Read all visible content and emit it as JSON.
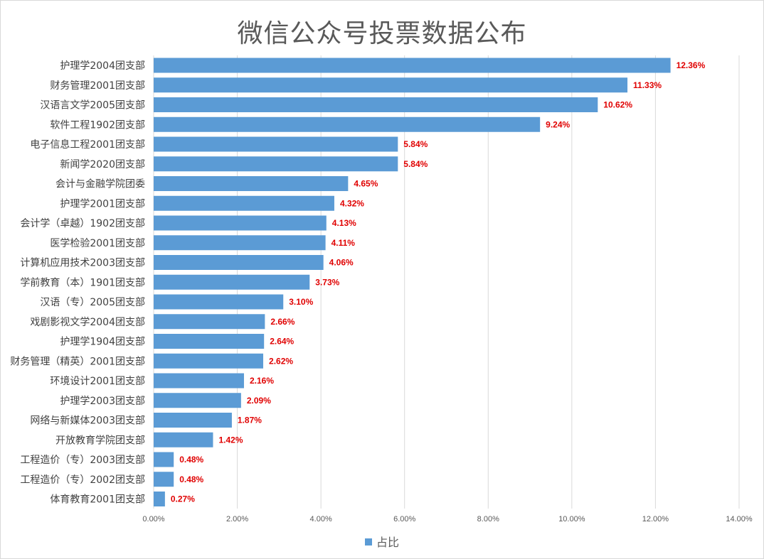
{
  "chart_data": {
    "type": "bar",
    "orientation": "horizontal",
    "title": "微信公众号投票数据公布",
    "categories": [
      "护理学2004团支部",
      "财务管理2001团支部",
      "汉语言文学2005团支部",
      "软件工程1902团支部",
      "电子信息工程2001团支部",
      "新闻学2020团支部",
      "会计与金融学院团委",
      "护理学2001团支部",
      "会计学（卓越）1902团支部",
      "医学检验2001团支部",
      "计算机应用技术2003团支部",
      "学前教育（本）1901团支部",
      "汉语（专）2005团支部",
      "戏剧影视文学2004团支部",
      "护理学1904团支部",
      "财务管理（精英）2001团支部",
      "环境设计2001团支部",
      "护理学2003团支部",
      "网络与新媒体2003团支部",
      "开放教育学院团支部",
      "工程造价（专）2003团支部",
      "工程造价（专）2002团支部",
      "体育教育2001团支部"
    ],
    "series": [
      {
        "name": "占比",
        "values": [
          12.36,
          11.33,
          10.62,
          9.24,
          5.84,
          5.84,
          4.65,
          4.32,
          4.13,
          4.11,
          4.06,
          3.73,
          3.1,
          2.66,
          2.64,
          2.62,
          2.16,
          2.09,
          1.87,
          1.42,
          0.48,
          0.48,
          0.27
        ]
      }
    ],
    "data_labels": [
      "12.36%",
      "11.33%",
      "10.62%",
      "9.24%",
      "5.84%",
      "5.84%",
      "4.65%",
      "4.32%",
      "4.13%",
      "4.11%",
      "4.06%",
      "3.73%",
      "3.10%",
      "2.66%",
      "2.64%",
      "2.62%",
      "2.16%",
      "2.09%",
      "1.87%",
      "1.42%",
      "0.48%",
      "0.48%",
      "0.27%"
    ],
    "xlim": [
      0,
      14
    ],
    "x_ticks": [
      0,
      2,
      4,
      6,
      8,
      10,
      12,
      14
    ],
    "x_tick_labels": [
      "0.00%",
      "2.00%",
      "4.00%",
      "6.00%",
      "8.00%",
      "10.00%",
      "12.00%",
      "14.00%"
    ],
    "grid": true,
    "legend_position": "bottom",
    "colors": {
      "bar": "#5b9bd5",
      "data_label": "#e00000",
      "grid": "#d9d9d9",
      "text": "#595959"
    }
  }
}
